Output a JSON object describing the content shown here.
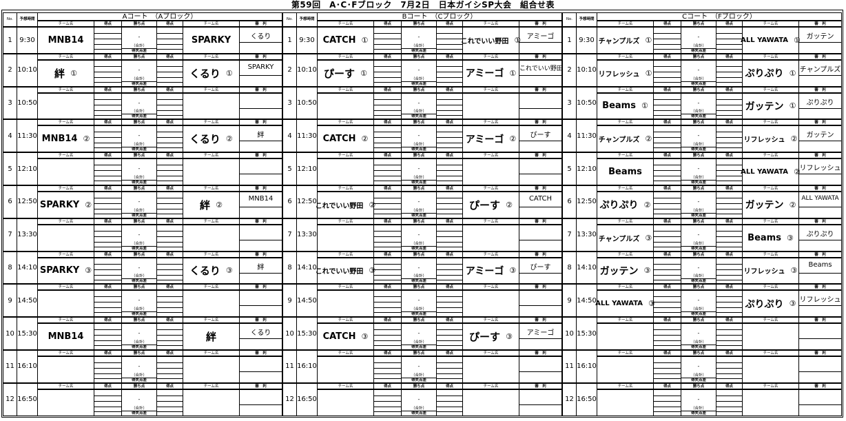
{
  "title": "第59回　A･C･Fブロック　7月2日　日本ガイシSP大会　組合せ表",
  "labels": {
    "no": "No.",
    "time": "予想時間",
    "team": "チーム名",
    "score": "得点",
    "points": "勝ち点",
    "ref": "審　判",
    "dash": "-",
    "total": "（合計）",
    "diff": "得失点差"
  },
  "courts": [
    {
      "title": "Aコート　（Aブロック）",
      "matches": [
        {
          "no": "1",
          "time": "9:30",
          "team1": "MNB14",
          "team1_mark": "",
          "team2": "SPARKY",
          "team2_mark": "",
          "referee": "くるり"
        },
        {
          "no": "2",
          "time": "10:10",
          "team1": "絆",
          "team1_mark": "①",
          "team2": "くるり",
          "team2_mark": "①",
          "referee": "SPARKY"
        },
        {
          "no": "3",
          "time": "10:50",
          "team1": "",
          "team1_mark": "",
          "team2": "",
          "team2_mark": "",
          "referee": ""
        },
        {
          "no": "4",
          "time": "11:30",
          "team1": "MNB14",
          "team1_mark": "②",
          "team2": "くるり",
          "team2_mark": "②",
          "referee": "絆"
        },
        {
          "no": "5",
          "time": "12:10",
          "team1": "",
          "team1_mark": "",
          "team2": "",
          "team2_mark": "",
          "referee": ""
        },
        {
          "no": "6",
          "time": "12:50",
          "team1": "SPARKY",
          "team1_mark": "②",
          "team2": "絆",
          "team2_mark": "②",
          "referee": "MNB14"
        },
        {
          "no": "7",
          "time": "13:30",
          "team1": "",
          "team1_mark": "",
          "team2": "",
          "team2_mark": "",
          "referee": ""
        },
        {
          "no": "8",
          "time": "14:10",
          "team1": "SPARKY",
          "team1_mark": "③",
          "team2": "くるり",
          "team2_mark": "③",
          "referee": "絆"
        },
        {
          "no": "9",
          "time": "14:50",
          "team1": "",
          "team1_mark": "",
          "team2": "",
          "team2_mark": "",
          "referee": ""
        },
        {
          "no": "10",
          "time": "15:30",
          "team1": "MNB14",
          "team1_mark": "",
          "team2": "絆",
          "team2_mark": "",
          "referee": "くるり"
        },
        {
          "no": "11",
          "time": "16:10",
          "team1": "",
          "team1_mark": "",
          "team2": "",
          "team2_mark": "",
          "referee": ""
        },
        {
          "no": "12",
          "time": "16:50",
          "team1": "",
          "team1_mark": "",
          "team2": "",
          "team2_mark": "",
          "referee": ""
        }
      ]
    },
    {
      "title": "Bコート　（Cブロック）",
      "matches": [
        {
          "no": "1",
          "time": "9:30",
          "team1": "CATCH",
          "team1_mark": "①",
          "team2": "これでいい野田",
          "team2_mark": "①",
          "referee": "アミーゴ"
        },
        {
          "no": "2",
          "time": "10:10",
          "team1": "ぴーす",
          "team1_mark": "①",
          "team2": "アミーゴ",
          "team2_mark": "①",
          "referee": "これでいい野田"
        },
        {
          "no": "3",
          "time": "10:50",
          "team1": "",
          "team1_mark": "",
          "team2": "",
          "team2_mark": "",
          "referee": ""
        },
        {
          "no": "4",
          "time": "11:30",
          "team1": "CATCH",
          "team1_mark": "②",
          "team2": "アミーゴ",
          "team2_mark": "②",
          "referee": "ぴーす"
        },
        {
          "no": "5",
          "time": "12:10",
          "team1": "",
          "team1_mark": "",
          "team2": "",
          "team2_mark": "",
          "referee": ""
        },
        {
          "no": "6",
          "time": "12:50",
          "team1": "これでいい野田",
          "team1_mark": "②",
          "team2": "ぴーす",
          "team2_mark": "②",
          "referee": "CATCH"
        },
        {
          "no": "7",
          "time": "13:30",
          "team1": "",
          "team1_mark": "",
          "team2": "",
          "team2_mark": "",
          "referee": ""
        },
        {
          "no": "8",
          "time": "14:10",
          "team1": "これでいい野田",
          "team1_mark": "③",
          "team2": "アミーゴ",
          "team2_mark": "③",
          "referee": "ぴーす"
        },
        {
          "no": "9",
          "time": "14:50",
          "team1": "",
          "team1_mark": "",
          "team2": "",
          "team2_mark": "",
          "referee": ""
        },
        {
          "no": "10",
          "time": "15:30",
          "team1": "CATCH",
          "team1_mark": "③",
          "team2": "ぴーす",
          "team2_mark": "③",
          "referee": "アミーゴ"
        },
        {
          "no": "11",
          "time": "16:10",
          "team1": "",
          "team1_mark": "",
          "team2": "",
          "team2_mark": "",
          "referee": ""
        },
        {
          "no": "12",
          "time": "16:50",
          "team1": "",
          "team1_mark": "",
          "team2": "",
          "team2_mark": "",
          "referee": ""
        }
      ]
    },
    {
      "title": "Cコート　（Fブロック）",
      "matches": [
        {
          "no": "1",
          "time": "9:30",
          "team1": "チャンプルズ",
          "team1_mark": "①",
          "team2": "ALL YAWATA",
          "team2_mark": "①",
          "referee": "ガッテン"
        },
        {
          "no": "2",
          "time": "10:10",
          "team1": "リフレッシュ",
          "team1_mark": "①",
          "team2": "ぷりぷり",
          "team2_mark": "①",
          "referee": "チャンプルズ"
        },
        {
          "no": "3",
          "time": "10:50",
          "team1": "Beams",
          "team1_mark": "①",
          "team2": "ガッテン",
          "team2_mark": "①",
          "referee": "ぷりぷり"
        },
        {
          "no": "4",
          "time": "11:30",
          "team1": "チャンプルズ",
          "team1_mark": "②",
          "team2": "リフレッシュ",
          "team2_mark": "②",
          "referee": "ガッテン"
        },
        {
          "no": "5",
          "time": "12:10",
          "team1": "Beams",
          "team1_mark": "",
          "team2": "ALL YAWATA",
          "team2_mark": "②",
          "referee": "リフレッシュ"
        },
        {
          "no": "6",
          "time": "12:50",
          "team1": "ぷりぷり",
          "team1_mark": "②",
          "team2": "ガッテン",
          "team2_mark": "②",
          "referee": "ALL YAWATA"
        },
        {
          "no": "7",
          "time": "13:30",
          "team1": "チャンプルズ",
          "team1_mark": "③",
          "team2": "Beams",
          "team2_mark": "③",
          "referee": "ぷりぷり"
        },
        {
          "no": "8",
          "time": "14:10",
          "team1": "ガッテン",
          "team1_mark": "③",
          "team2": "リフレッシュ",
          "team2_mark": "③",
          "referee": "Beams"
        },
        {
          "no": "9",
          "time": "14:50",
          "team1": "ALL YAWATA",
          "team1_mark": "③",
          "team2": "ぷりぷり",
          "team2_mark": "③",
          "referee": "リフレッシュ"
        },
        {
          "no": "10",
          "time": "15:30",
          "team1": "",
          "team1_mark": "",
          "team2": "",
          "team2_mark": "",
          "referee": ""
        },
        {
          "no": "11",
          "time": "16:10",
          "team1": "",
          "team1_mark": "",
          "team2": "",
          "team2_mark": "",
          "referee": ""
        },
        {
          "no": "12",
          "time": "16:50",
          "team1": "",
          "team1_mark": "",
          "team2": "",
          "team2_mark": "",
          "referee": ""
        }
      ]
    }
  ]
}
